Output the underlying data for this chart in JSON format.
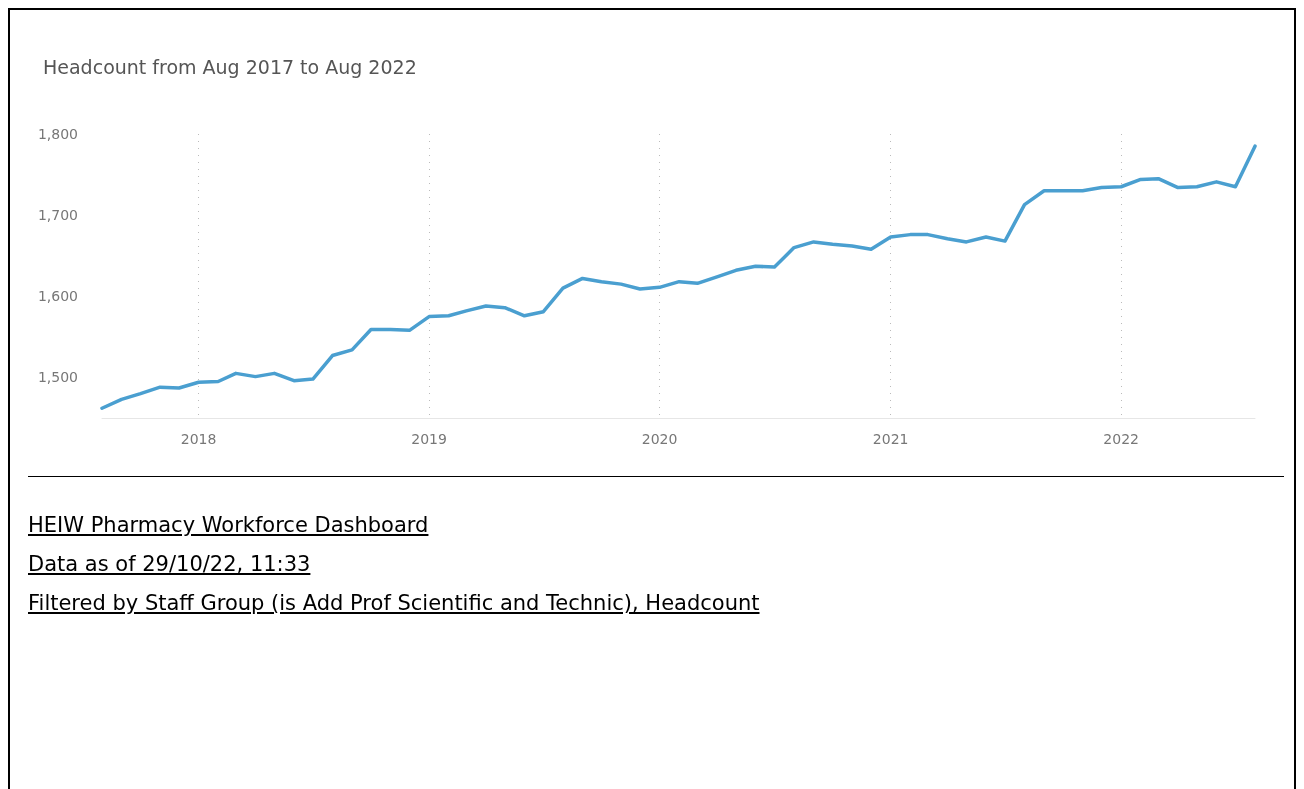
{
  "chart_data": {
    "type": "line",
    "title": "Headcount from Aug 2017 to Aug 2022",
    "x": [
      "2017-08",
      "2017-09",
      "2017-10",
      "2017-11",
      "2017-12",
      "2018-01",
      "2018-02",
      "2018-03",
      "2018-04",
      "2018-05",
      "2018-06",
      "2018-07",
      "2018-08",
      "2018-09",
      "2018-10",
      "2018-11",
      "2018-12",
      "2019-01",
      "2019-02",
      "2019-03",
      "2019-04",
      "2019-05",
      "2019-06",
      "2019-07",
      "2019-08",
      "2019-09",
      "2019-10",
      "2019-11",
      "2019-12",
      "2020-01",
      "2020-02",
      "2020-03",
      "2020-04",
      "2020-05",
      "2020-06",
      "2020-07",
      "2020-08",
      "2020-09",
      "2020-10",
      "2020-11",
      "2020-12",
      "2021-01",
      "2021-02",
      "2021-03",
      "2021-04",
      "2021-05",
      "2021-06",
      "2021-07",
      "2021-08",
      "2021-09",
      "2021-10",
      "2021-11",
      "2021-12",
      "2022-01",
      "2022-02",
      "2022-03",
      "2022-04",
      "2022-05",
      "2022-06",
      "2022-07",
      "2022-08"
    ],
    "series": [
      {
        "color": "#4a9fd0",
        "values": [
          1462,
          1473,
          1480,
          1488,
          1487,
          1494,
          1495,
          1505,
          1501,
          1505,
          1496,
          1498,
          1527,
          1534,
          1559,
          1559,
          1558,
          1575,
          1576,
          1582,
          1588,
          1586,
          1576,
          1581,
          1610,
          1622,
          1618,
          1615,
          1609,
          1611,
          1618,
          1616,
          1624,
          1632,
          1637,
          1636,
          1660,
          1667,
          1664,
          1662,
          1658,
          1673,
          1676,
          1676,
          1671,
          1667,
          1673,
          1668,
          1713,
          1730,
          1730,
          1730,
          1734,
          1735,
          1744,
          1745,
          1734,
          1735,
          1741,
          1735,
          1785
        ]
      }
    ],
    "xticks": [
      {
        "value": "2018-01",
        "label": "2018"
      },
      {
        "value": "2019-01",
        "label": "2019"
      },
      {
        "value": "2020-01",
        "label": "2020"
      },
      {
        "value": "2021-01",
        "label": "2021"
      },
      {
        "value": "2022-01",
        "label": "2022"
      }
    ],
    "xlim": [
      "2017-08",
      "2022-08"
    ],
    "ylim": [
      1450,
      1800
    ],
    "yticks": [
      {
        "value": 1500,
        "label": "1,500"
      },
      {
        "value": 1600,
        "label": "1,600"
      },
      {
        "value": 1700,
        "label": "1,700"
      },
      {
        "value": 1800,
        "label": "1,800"
      }
    ],
    "grid": "x",
    "marker": "none",
    "line_style": "solid",
    "annotations": [
      "HEIW Pharmacy Workforce Dashboard",
      "Data as of 29/10/22, 11:33",
      "Filtered by Staff Group (is Add Prof Scientific and Technic), Headcount"
    ]
  }
}
